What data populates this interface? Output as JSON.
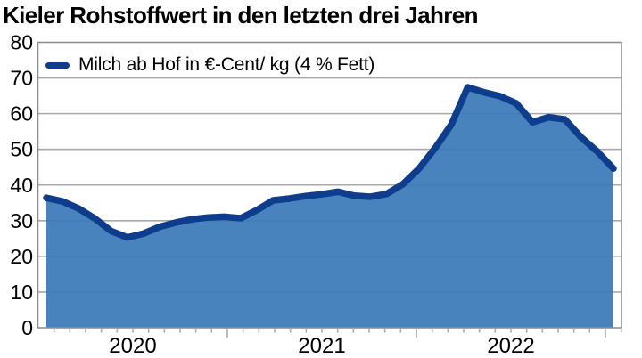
{
  "title": "Kieler Rohstoffwert in den letzten drei Jahren",
  "legend": {
    "label": "Milch ab Hof in €-Cent/ kg (4 % Fett)"
  },
  "colors": {
    "line": "#0d3d8c",
    "area": "#3a7ab8",
    "grid": "#a9a9a9",
    "frame": "#8f8f8f",
    "text": "#000000",
    "background": "#ffffff"
  },
  "chart_data": {
    "type": "area",
    "title": "Kieler Rohstoffwert in den letzten drei Jahren",
    "x_tick_labels": [
      "2020",
      "2021",
      "2022"
    ],
    "y_ticks": [
      0,
      10,
      20,
      30,
      40,
      50,
      60,
      70,
      80
    ],
    "ylim": [
      0,
      80
    ],
    "grid": true,
    "legend_position": "top-left",
    "series": [
      {
        "name": "Milch ab Hof in €-Cent/ kg (4 % Fett)",
        "unit": "€-Cent/kg (4 % Fett)",
        "x": [
          "2020-01",
          "2020-02",
          "2020-03",
          "2020-04",
          "2020-05",
          "2020-06",
          "2020-07",
          "2020-08",
          "2020-09",
          "2020-10",
          "2020-11",
          "2020-12",
          "2021-01",
          "2021-02",
          "2021-03",
          "2021-04",
          "2021-05",
          "2021-06",
          "2021-07",
          "2021-08",
          "2021-09",
          "2021-10",
          "2021-11",
          "2021-12",
          "2022-01",
          "2022-02",
          "2022-03",
          "2022-04",
          "2022-05",
          "2022-06",
          "2022-07",
          "2022-08",
          "2022-09",
          "2022-10",
          "2022-11",
          "2022-12"
        ],
        "values": [
          36.4,
          35.4,
          33.4,
          30.6,
          27.1,
          25.3,
          26.4,
          28.3,
          29.5,
          30.4,
          30.9,
          31.1,
          30.7,
          33.0,
          35.7,
          36.2,
          36.9,
          37.4,
          38.1,
          37.0,
          36.7,
          37.5,
          40.2,
          44.6,
          50.4,
          57.0,
          67.4,
          66.0,
          64.9,
          62.9,
          57.6,
          59.0,
          58.4,
          53.4,
          49.4,
          44.6
        ]
      }
    ]
  }
}
